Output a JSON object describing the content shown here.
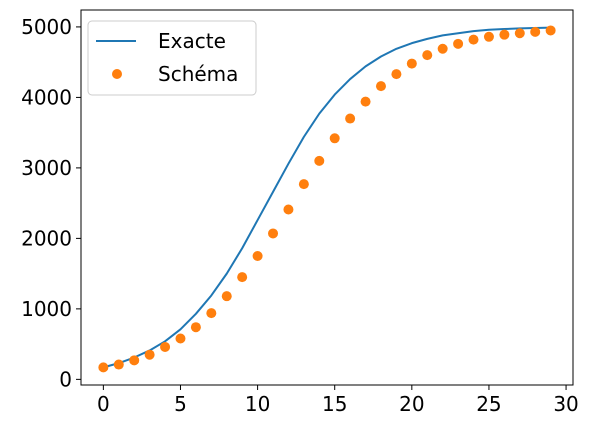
{
  "chart_data": {
    "type": "line",
    "title": "",
    "xlabel": "",
    "ylabel": "",
    "xlim": [
      -1.45,
      30.45
    ],
    "ylim": [
      -80,
      5240
    ],
    "xticks": [
      0,
      5,
      10,
      15,
      20,
      25,
      30
    ],
    "yticks": [
      0,
      1000,
      2000,
      3000,
      4000,
      5000
    ],
    "grid": false,
    "legend_position": "top-left",
    "series": [
      {
        "name": "Exacte",
        "style": "line",
        "color": "#1f77b4",
        "x": [
          0,
          1,
          2,
          3,
          4,
          5,
          6,
          7,
          8,
          9,
          10,
          11,
          12,
          13,
          14,
          15,
          16,
          17,
          18,
          19,
          20,
          21,
          22,
          23,
          24,
          25,
          26,
          27,
          28,
          29
        ],
        "y": [
          170,
          230,
          310,
          410,
          540,
          710,
          930,
          1190,
          1500,
          1860,
          2260,
          2660,
          3060,
          3440,
          3770,
          4040,
          4260,
          4440,
          4580,
          4690,
          4770,
          4830,
          4880,
          4910,
          4940,
          4960,
          4970,
          4980,
          4985,
          4990
        ]
      },
      {
        "name": "Schéma",
        "style": "scatter",
        "color": "#ff7f0e",
        "x": [
          0,
          1,
          2,
          3,
          4,
          5,
          6,
          7,
          8,
          9,
          10,
          11,
          12,
          13,
          14,
          15,
          16,
          17,
          18,
          19,
          20,
          21,
          22,
          23,
          24,
          25,
          26,
          27,
          28,
          29
        ],
        "y": [
          170,
          210,
          270,
          350,
          460,
          580,
          740,
          940,
          1180,
          1450,
          1750,
          2070,
          2410,
          2770,
          3100,
          3420,
          3700,
          3940,
          4160,
          4330,
          4480,
          4600,
          4690,
          4760,
          4820,
          4860,
          4890,
          4910,
          4930,
          4950
        ]
      }
    ]
  }
}
